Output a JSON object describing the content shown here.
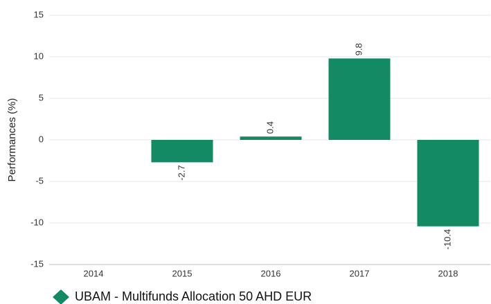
{
  "chart_data": {
    "type": "bar",
    "y_label": "Performances (%)",
    "categories": [
      "2014",
      "2015",
      "2016",
      "2017",
      "2018"
    ],
    "series": [
      {
        "name": "UBAM - Multifunds Allocation 50 AHD EUR",
        "color": "#138a63",
        "values": [
          null,
          -2.7,
          0.4,
          9.8,
          -10.4
        ]
      }
    ],
    "ylim": [
      -15,
      15
    ],
    "yticks": [
      -15,
      -10,
      -5,
      0,
      5,
      10,
      15
    ],
    "grid": true,
    "legend": "bottom-left"
  }
}
